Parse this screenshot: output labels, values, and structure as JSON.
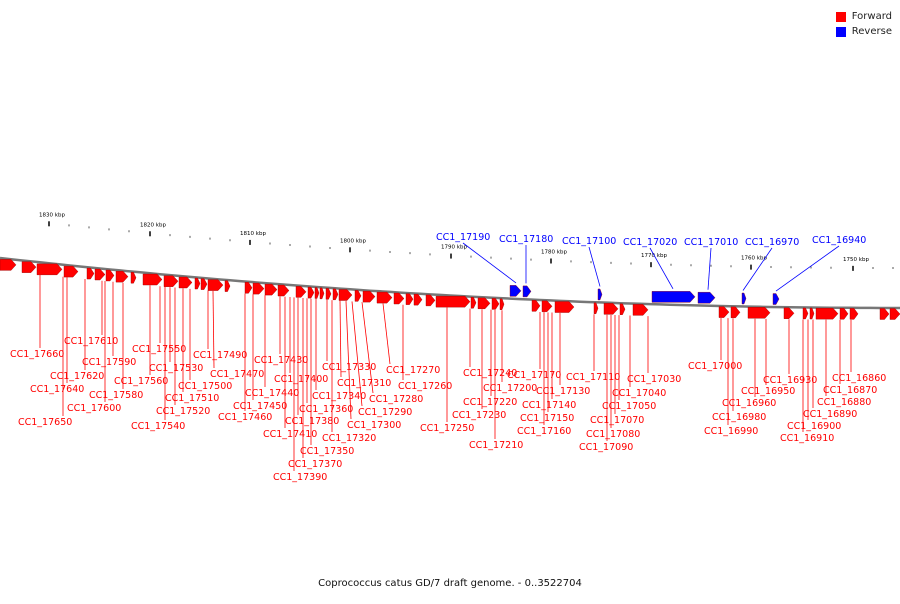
{
  "legend": {
    "forward_label": "Forward",
    "reverse_label": "Reverse",
    "forward_color": "#ff0000",
    "reverse_color": "#0000ff"
  },
  "caption": "Coprococcus catus GD/7 draft genome. - 0..3522704",
  "axis": {
    "tick_labels": [
      "1830 kbp",
      "1820 kbp",
      "1810 kbp",
      "1800 kbp",
      "1790 kbp",
      "1780 kbp",
      "1770 kbp",
      "1760 kbp",
      "1750 kbp"
    ]
  },
  "reverse_labels": [
    "CC1_17190",
    "CC1_17180",
    "CC1_17100",
    "CC1_17020",
    "CC1_17010",
    "CC1_16970",
    "CC1_16940"
  ],
  "forward_labels": [
    "CC1_17660",
    "CC1_17650",
    "CC1_17640",
    "CC1_17620",
    "CC1_17610",
    "CC1_17600",
    "CC1_17590",
    "CC1_17580",
    "CC1_17560",
    "CC1_17550",
    "CC1_17540",
    "CC1_17530",
    "CC1_17520",
    "CC1_17510",
    "CC1_17500",
    "CC1_17490",
    "CC1_17470",
    "CC1_17460",
    "CC1_17450",
    "CC1_17440",
    "CC1_17430",
    "CC1_17410",
    "CC1_17400",
    "CC1_17390",
    "CC1_17380",
    "CC1_17370",
    "CC1_17360",
    "CC1_17350",
    "CC1_17340",
    "CC1_17330",
    "CC1_17320",
    "CC1_17310",
    "CC1_17300",
    "CC1_17290",
    "CC1_17280",
    "CC1_17270",
    "CC1_17260",
    "CC1_17250",
    "CC1_17240",
    "CC1_17230",
    "CC1_17220",
    "CC1_17210",
    "CC1_17200",
    "CC1_17170",
    "CC1_17160",
    "CC1_17150",
    "CC1_17140",
    "CC1_17130",
    "CC1_17110",
    "CC1_17090",
    "CC1_17080",
    "CC1_17070",
    "CC1_17050",
    "CC1_17040",
    "CC1_17030",
    "CC1_17000",
    "CC1_16990",
    "CC1_16980",
    "CC1_16960",
    "CC1_16950",
    "CC1_16930",
    "CC1_16910",
    "CC1_16900",
    "CC1_16890",
    "CC1_16880",
    "CC1_16870",
    "CC1_16860"
  ]
}
